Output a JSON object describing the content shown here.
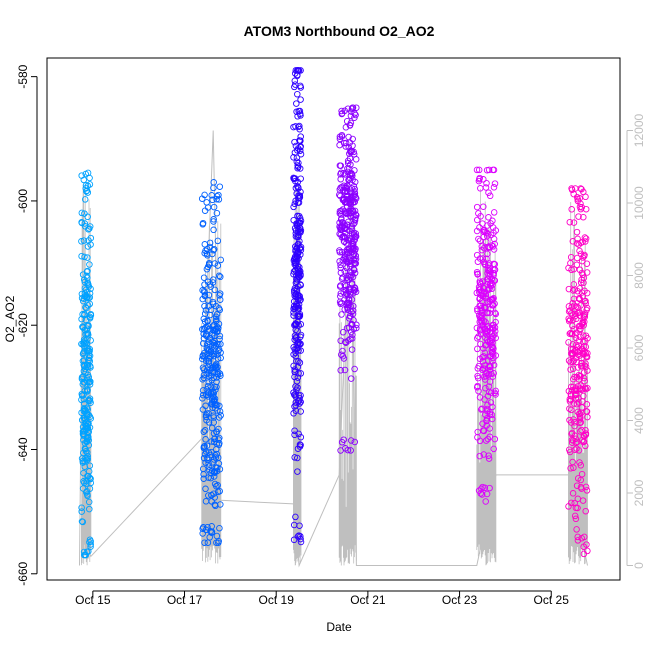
{
  "chart_data": {
    "type": "scatter",
    "title": "ATOM3 Northbound O2_AO2",
    "xlabel": "Date",
    "ylabel": "O2_AO2",
    "x_ticks": [
      "Oct 15",
      "Oct 17",
      "Oct 19",
      "Oct 21",
      "Oct 23",
      "Oct 25"
    ],
    "xlim": [
      "2023-10-14T00:00",
      "2023-10-26T12:00"
    ],
    "ylim": [
      -661,
      -577
    ],
    "y_ticks": [
      -580,
      -600,
      -620,
      -640,
      -660
    ],
    "y2_ticks": [
      0,
      2000,
      4000,
      6000,
      8000,
      10000,
      12000
    ],
    "y2lim": [
      -400,
      14000
    ],
    "grid": false,
    "series": [
      {
        "color": "#00a2ff",
        "x_range": [
          "2023-10-14T18:00",
          "2023-10-14T23:00"
        ],
        "y_center": -628,
        "y_min": -657,
        "y_max": -595,
        "n_points": 260
      },
      {
        "color": "#0061ff",
        "x_range": [
          "2023-10-17T09:00",
          "2023-10-17T19:00"
        ],
        "y_center": -627,
        "y_min": -655,
        "y_max": -597,
        "n_points": 320
      },
      {
        "color": "#2e00ff",
        "x_range": [
          "2023-10-19T09:00",
          "2023-10-19T13:00"
        ],
        "y_center": -612,
        "y_min": -655,
        "y_max": -579,
        "n_points": 280
      },
      {
        "color": "#8c00ff",
        "x_range": [
          "2023-10-20T09:00",
          "2023-10-20T18:00"
        ],
        "y_center": -605,
        "y_min": -641,
        "y_max": -585,
        "n_points": 340
      },
      {
        "color": "#db00ff",
        "x_range": [
          "2023-10-23T09:00",
          "2023-10-23T19:00"
        ],
        "y_center": -618,
        "y_min": -649,
        "y_max": -595,
        "n_points": 300
      },
      {
        "color": "#ff00c8",
        "x_range": [
          "2023-10-25T09:00",
          "2023-10-25T19:00"
        ],
        "y_center": -625,
        "y_min": -657,
        "y_max": -598,
        "n_points": 290
      }
    ],
    "secondary_line": {
      "color": "#bfbfbf",
      "points": [
        [
          "2023-10-14T17:00",
          0
        ],
        [
          "2023-10-14T19:00",
          10500
        ],
        [
          "2023-10-14T21:00",
          500
        ],
        [
          "2023-10-14T23:00",
          250
        ],
        [
          "2023-10-17T09:00",
          3500
        ],
        [
          "2023-10-17T15:00",
          12000
        ],
        [
          "2023-10-17T19:00",
          1800
        ],
        [
          "2023-10-19T09:00",
          1700
        ],
        [
          "2023-10-19T12:00",
          0
        ],
        [
          "2023-10-20T09:00",
          2500
        ],
        [
          "2023-10-20T15:00",
          10200
        ],
        [
          "2023-10-20T18:00",
          0
        ],
        [
          "2023-10-23T09:00",
          0
        ],
        [
          "2023-10-23T19:00",
          2500
        ],
        [
          "2023-10-25T09:00",
          2500
        ],
        [
          "2023-10-25T19:00",
          0
        ]
      ]
    }
  }
}
